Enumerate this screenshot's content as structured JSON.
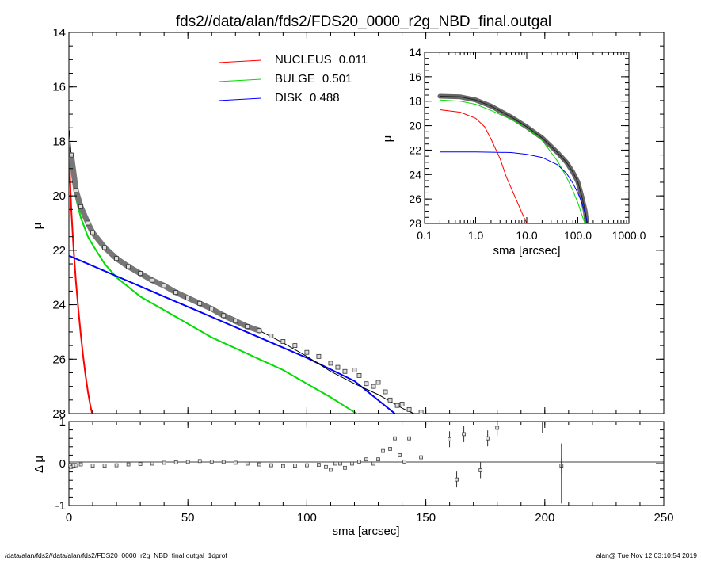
{
  "title": "fds2//data/alan/fds2/FDS20_0000_r2g_NBD_final.outgal",
  "footer": {
    "left": "/data/alan/fds2//data/alan/fds2/FDS20_0000_r2g_NBD_final.outgal_1dprof",
    "right": "alan@  Tue Nov 12 03:10:54 2019"
  },
  "legend": [
    {
      "name": "NUCLEUS",
      "value": "0.011",
      "color": "#ff0000"
    },
    {
      "name": "BULGE",
      "value": "0.501",
      "color": "#00dd00"
    },
    {
      "name": "DISK",
      "value": "0.488",
      "color": "#0000ff"
    }
  ],
  "chart_data": [
    {
      "type": "line",
      "panel": "main",
      "xlabel": "",
      "ylabel": "μ",
      "xlim": [
        0,
        250
      ],
      "ylim": [
        28,
        14
      ],
      "y_inverted": true,
      "xticks": [
        "0",
        "50",
        "100",
        "150",
        "200",
        "250"
      ],
      "yticks": [
        "14",
        "16",
        "18",
        "20",
        "22",
        "24",
        "26",
        "28"
      ],
      "series": [
        {
          "name": "NUCLEUS",
          "color": "#ff0000",
          "x": [
            0.2,
            1,
            2,
            3,
            4,
            5,
            6,
            7,
            8,
            9,
            10
          ],
          "y": [
            18.7,
            20.5,
            22.0,
            23.2,
            24.2,
            25.1,
            25.9,
            26.6,
            27.2,
            27.7,
            28.1
          ]
        },
        {
          "name": "BULGE",
          "color": "#00dd00",
          "x": [
            0.2,
            1,
            2,
            3,
            5,
            8,
            10,
            15,
            20,
            30,
            40,
            50,
            60,
            70,
            80,
            90,
            100,
            110,
            120,
            125
          ],
          "y": [
            17.9,
            18.9,
            19.6,
            20.1,
            20.8,
            21.5,
            21.8,
            22.5,
            23.0,
            23.7,
            24.2,
            24.7,
            25.2,
            25.6,
            26.0,
            26.4,
            26.9,
            27.4,
            27.95,
            28.2
          ]
        },
        {
          "name": "DISK",
          "color": "#0000ff",
          "x": [
            0,
            20,
            40,
            60,
            80,
            100,
            120,
            137
          ],
          "y": [
            22.2,
            22.95,
            23.7,
            24.45,
            25.2,
            25.95,
            26.8,
            28.0
          ]
        },
        {
          "name": "model",
          "color": "#000000",
          "x": [
            0.2,
            1,
            2,
            3,
            5,
            8,
            10,
            15,
            20,
            30,
            40,
            50,
            60,
            70,
            80,
            90,
            100,
            110,
            120,
            130,
            140,
            145
          ],
          "y": [
            17.6,
            18.6,
            19.4,
            19.9,
            20.5,
            21.1,
            21.4,
            21.95,
            22.35,
            22.9,
            23.3,
            23.7,
            24.1,
            24.5,
            24.95,
            25.4,
            25.9,
            26.45,
            26.9,
            27.3,
            27.8,
            28.0
          ]
        },
        {
          "name": "data",
          "color": "#000000",
          "x": [
            1,
            3,
            5,
            8,
            10,
            15,
            20,
            25,
            30,
            35,
            40,
            45,
            50,
            55,
            60,
            65,
            70,
            75,
            80,
            85,
            90,
            95,
            100,
            105,
            110,
            113,
            116,
            120,
            122,
            125,
            128,
            130,
            133,
            135,
            138,
            140,
            143,
            148
          ],
          "y": [
            18.5,
            19.8,
            20.4,
            21.0,
            21.35,
            21.9,
            22.3,
            22.6,
            22.85,
            23.1,
            23.3,
            23.55,
            23.75,
            23.95,
            24.15,
            24.4,
            24.6,
            24.8,
            24.95,
            25.15,
            25.35,
            25.5,
            25.75,
            25.9,
            26.15,
            26.3,
            26.45,
            26.4,
            26.6,
            26.9,
            27.0,
            26.85,
            27.2,
            27.5,
            27.7,
            27.65,
            27.85,
            27.95
          ]
        }
      ]
    },
    {
      "type": "line",
      "panel": "inset",
      "xlabel": "sma [arcsec]",
      "ylabel": "μ",
      "xscale": "log",
      "xlim": [
        0.1,
        1000
      ],
      "ylim": [
        28,
        14
      ],
      "y_inverted": true,
      "xticks": [
        "0.1",
        "1.0",
        "10.0",
        "100.0",
        "1000.0"
      ],
      "yticks": [
        "14",
        "16",
        "18",
        "20",
        "22",
        "24",
        "26",
        "28"
      ],
      "series": [
        {
          "name": "NUCLEUS",
          "color": "#ff0000",
          "x": [
            0.2,
            0.5,
            1,
            1.5,
            2,
            3,
            4,
            6,
            8,
            10
          ],
          "y": [
            18.7,
            18.9,
            19.4,
            20.1,
            21.1,
            22.7,
            24.2,
            25.9,
            27.1,
            28.0
          ]
        },
        {
          "name": "BULGE",
          "color": "#00dd00",
          "x": [
            0.2,
            0.5,
            1,
            2,
            5,
            10,
            20,
            40,
            60,
            80,
            100,
            120,
            140
          ],
          "y": [
            17.9,
            18.0,
            18.25,
            18.75,
            19.5,
            20.2,
            21.2,
            22.9,
            24.2,
            25.3,
            26.3,
            27.3,
            28.1
          ]
        },
        {
          "name": "DISK",
          "color": "#0000ff",
          "x": [
            0.2,
            1,
            5,
            10,
            20,
            40,
            60,
            80,
            100,
            120,
            140,
            155
          ],
          "y": [
            22.15,
            22.15,
            22.2,
            22.35,
            22.6,
            23.2,
            23.9,
            24.7,
            25.5,
            26.3,
            27.2,
            28.0
          ]
        },
        {
          "name": "data",
          "color": "#606060",
          "x": [
            0.2,
            0.5,
            1,
            2,
            5,
            10,
            20,
            40,
            60,
            80,
            100,
            120,
            140,
            150
          ],
          "y": [
            17.6,
            17.65,
            17.9,
            18.4,
            19.3,
            20.1,
            21.0,
            22.2,
            23.0,
            23.8,
            24.6,
            25.8,
            27.0,
            28.0
          ]
        }
      ]
    },
    {
      "type": "scatter",
      "panel": "residual",
      "xlabel": "sma [arcsec]",
      "ylabel": "Δ μ",
      "xlim": [
        0,
        250
      ],
      "ylim": [
        -1,
        1
      ],
      "xticks": [
        "0",
        "50",
        "100",
        "150",
        "200",
        "250"
      ],
      "yticks": [
        "-1",
        "0",
        "1"
      ],
      "series": [
        {
          "name": "residual",
          "x": [
            0.5,
            1,
            2,
            3,
            5,
            10,
            15,
            20,
            25,
            30,
            35,
            40,
            45,
            50,
            55,
            60,
            65,
            70,
            75,
            80,
            85,
            90,
            95,
            100,
            105,
            108,
            110,
            112,
            114,
            116,
            119,
            122,
            125,
            128,
            130,
            132,
            135,
            137,
            139,
            141,
            143,
            148,
            160,
            163,
            166,
            173,
            176,
            180,
            207
          ],
          "y": [
            -0.05,
            -0.08,
            -0.05,
            -0.04,
            -0.02,
            -0.05,
            -0.05,
            -0.04,
            -0.02,
            -0.01,
            0.0,
            0.02,
            0.03,
            0.04,
            0.06,
            0.05,
            0.04,
            0.02,
            0.0,
            -0.02,
            -0.04,
            -0.06,
            -0.05,
            -0.04,
            -0.03,
            -0.08,
            -0.15,
            0.0,
            0.0,
            -0.1,
            0.0,
            0.05,
            0.1,
            0.0,
            0.1,
            0.3,
            0.35,
            0.6,
            0.2,
            0.05,
            0.6,
            0.15,
            0.58,
            -0.38,
            0.7,
            -0.16,
            0.6,
            0.85,
            -0.05
          ]
        }
      ]
    }
  ]
}
